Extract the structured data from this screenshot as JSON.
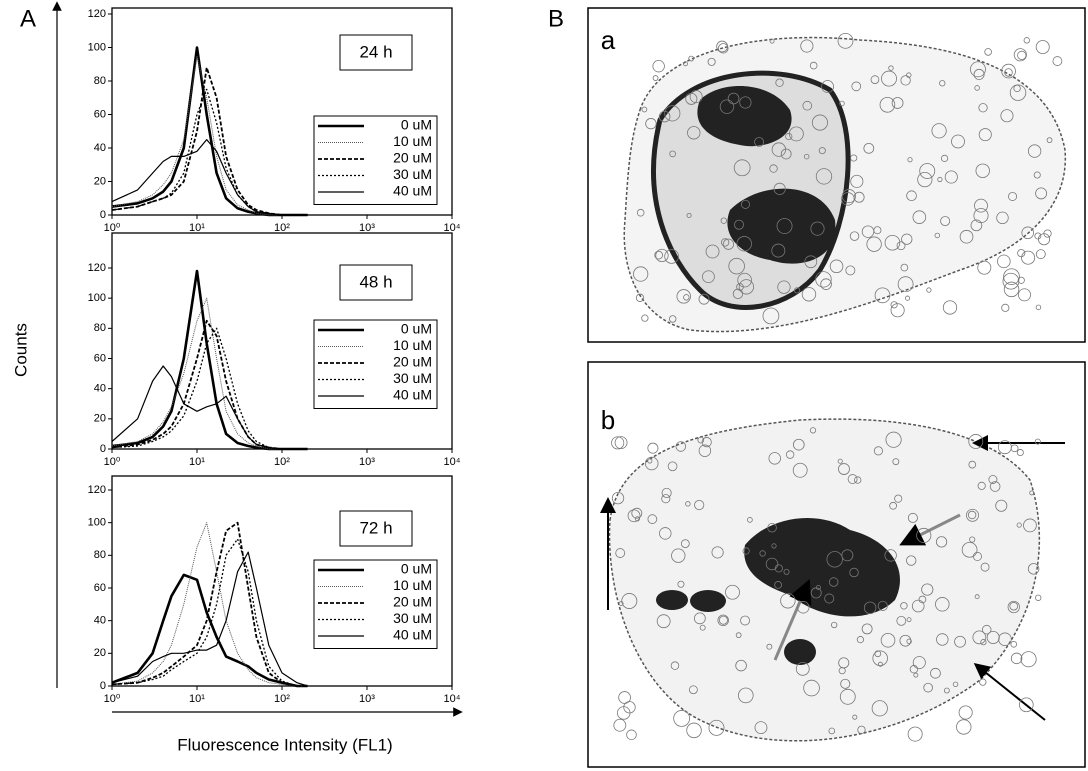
{
  "figure": {
    "panel_a_label": "A",
    "panel_b_label": "B",
    "y_label": "Counts",
    "x_label": "Fluorescence Intensity (FL1)"
  },
  "images": [
    {
      "label": "a"
    },
    {
      "label": "b"
    }
  ],
  "chart_data": [
    {
      "type": "line",
      "annotation": "24 h",
      "log_x": true,
      "legend": "right",
      "x": [
        1,
        2,
        3,
        4,
        5,
        7,
        10,
        13,
        17,
        22,
        30,
        40,
        50,
        70,
        100,
        150,
        200
      ],
      "xlim": [
        1,
        10000
      ],
      "xticks": [
        {
          "value": 1,
          "label": "10⁰"
        },
        {
          "value": 10,
          "label": "10¹"
        },
        {
          "value": 100,
          "label": "10²"
        },
        {
          "value": 1000,
          "label": "10³"
        },
        {
          "value": 10000,
          "label": "10⁴"
        }
      ],
      "ylim": [
        0,
        120
      ],
      "yticks": [
        0,
        20,
        40,
        60,
        80,
        100,
        120
      ],
      "series": [
        {
          "name": "0 uM",
          "color": "#000000",
          "dash": "none",
          "line_width": 2.6,
          "values": [
            5,
            7,
            10,
            14,
            20,
            40,
            100,
            60,
            25,
            10,
            4,
            2,
            1,
            0,
            0,
            0,
            0
          ]
        },
        {
          "name": "10 uM",
          "color": "#555555",
          "dash": "1,1",
          "line_width": 1,
          "values": [
            5,
            8,
            12,
            18,
            25,
            45,
            95,
            70,
            35,
            15,
            6,
            3,
            1,
            0,
            0,
            0,
            0
          ]
        },
        {
          "name": "20 uM",
          "color": "#000000",
          "dash": "4,2",
          "line_width": 1.8,
          "values": [
            3,
            5,
            8,
            10,
            12,
            20,
            50,
            88,
            70,
            35,
            15,
            6,
            3,
            1,
            0,
            0,
            0
          ]
        },
        {
          "name": "30 uM",
          "color": "#000000",
          "dash": "2,2",
          "line_width": 1.3,
          "values": [
            3,
            5,
            8,
            10,
            13,
            25,
            60,
            75,
            55,
            28,
            12,
            5,
            2,
            1,
            0,
            0,
            0
          ]
        },
        {
          "name": "40 uM",
          "color": "#000000",
          "dash": "none",
          "line_width": 1.2,
          "values": [
            8,
            15,
            25,
            32,
            35,
            35,
            38,
            45,
            38,
            25,
            12,
            5,
            2,
            1,
            0,
            0,
            0
          ]
        }
      ]
    },
    {
      "type": "line",
      "annotation": "48 h",
      "log_x": true,
      "legend": "right",
      "x": [
        1,
        2,
        3,
        4,
        5,
        7,
        10,
        13,
        17,
        22,
        30,
        40,
        50,
        70,
        100,
        150,
        200
      ],
      "xlim": [
        1,
        10000
      ],
      "xticks": [
        {
          "value": 1,
          "label": "10⁰"
        },
        {
          "value": 10,
          "label": "10¹"
        },
        {
          "value": 100,
          "label": "10²"
        },
        {
          "value": 1000,
          "label": "10³"
        },
        {
          "value": 10000,
          "label": "10⁴"
        }
      ],
      "ylim": [
        0,
        120
      ],
      "yticks": [
        0,
        20,
        40,
        60,
        80,
        100,
        120
      ],
      "series": [
        {
          "name": "0 uM",
          "color": "#000000",
          "dash": "none",
          "line_width": 2.6,
          "values": [
            2,
            4,
            8,
            15,
            25,
            60,
            118,
            70,
            30,
            10,
            4,
            2,
            1,
            0,
            0,
            0,
            0
          ]
        },
        {
          "name": "10 uM",
          "color": "#555555",
          "dash": "1,1",
          "line_width": 1,
          "values": [
            2,
            5,
            10,
            18,
            28,
            50,
            85,
            100,
            60,
            25,
            10,
            4,
            2,
            0,
            0,
            0,
            0
          ]
        },
        {
          "name": "20 uM",
          "color": "#000000",
          "dash": "4,2",
          "line_width": 1.8,
          "values": [
            1,
            3,
            6,
            10,
            15,
            30,
            60,
            85,
            75,
            45,
            20,
            8,
            3,
            1,
            0,
            0,
            0
          ]
        },
        {
          "name": "30 uM",
          "color": "#000000",
          "dash": "2,2",
          "line_width": 1.3,
          "values": [
            1,
            2,
            5,
            8,
            12,
            22,
            45,
            70,
            80,
            60,
            30,
            12,
            5,
            1,
            0,
            0,
            0
          ]
        },
        {
          "name": "40 uM",
          "color": "#000000",
          "dash": "none",
          "line_width": 1.2,
          "values": [
            5,
            20,
            45,
            55,
            48,
            30,
            25,
            28,
            30,
            35,
            20,
            8,
            3,
            1,
            0,
            0,
            0
          ]
        }
      ]
    },
    {
      "type": "line",
      "annotation": "72 h",
      "log_x": true,
      "legend": "right",
      "x": [
        1,
        2,
        3,
        4,
        5,
        7,
        10,
        13,
        17,
        22,
        30,
        40,
        50,
        70,
        100,
        150,
        200
      ],
      "xlim": [
        1,
        10000
      ],
      "xticks": [
        {
          "value": 1,
          "label": "10⁰"
        },
        {
          "value": 10,
          "label": "10¹"
        },
        {
          "value": 100,
          "label": "10²"
        },
        {
          "value": 1000,
          "label": "10³"
        },
        {
          "value": 10000,
          "label": "10⁴"
        }
      ],
      "ylim": [
        0,
        120
      ],
      "yticks": [
        0,
        20,
        40,
        60,
        80,
        100,
        120
      ],
      "series": [
        {
          "name": "0 uM",
          "color": "#000000",
          "dash": "none",
          "line_width": 2.6,
          "values": [
            2,
            8,
            20,
            40,
            55,
            68,
            65,
            45,
            30,
            18,
            15,
            12,
            8,
            4,
            2,
            0,
            0
          ]
        },
        {
          "name": "10 uM",
          "color": "#555555",
          "dash": "1,1",
          "line_width": 1,
          "values": [
            1,
            3,
            8,
            15,
            25,
            50,
            85,
            100,
            70,
            40,
            20,
            10,
            5,
            2,
            1,
            0,
            0
          ]
        },
        {
          "name": "20 uM",
          "color": "#000000",
          "dash": "4,2",
          "line_width": 1.8,
          "values": [
            1,
            2,
            5,
            8,
            12,
            18,
            25,
            40,
            70,
            95,
            100,
            60,
            30,
            8,
            2,
            0,
            0
          ]
        },
        {
          "name": "30 uM",
          "color": "#000000",
          "dash": "2,2",
          "line_width": 1.3,
          "values": [
            1,
            2,
            4,
            6,
            10,
            15,
            20,
            30,
            50,
            80,
            90,
            70,
            40,
            12,
            3,
            0,
            0
          ]
        },
        {
          "name": "40 uM",
          "color": "#000000",
          "dash": "none",
          "line_width": 1.2,
          "values": [
            2,
            6,
            15,
            18,
            20,
            20,
            22,
            22,
            25,
            40,
            70,
            82,
            60,
            25,
            8,
            2,
            0
          ]
        }
      ]
    }
  ]
}
